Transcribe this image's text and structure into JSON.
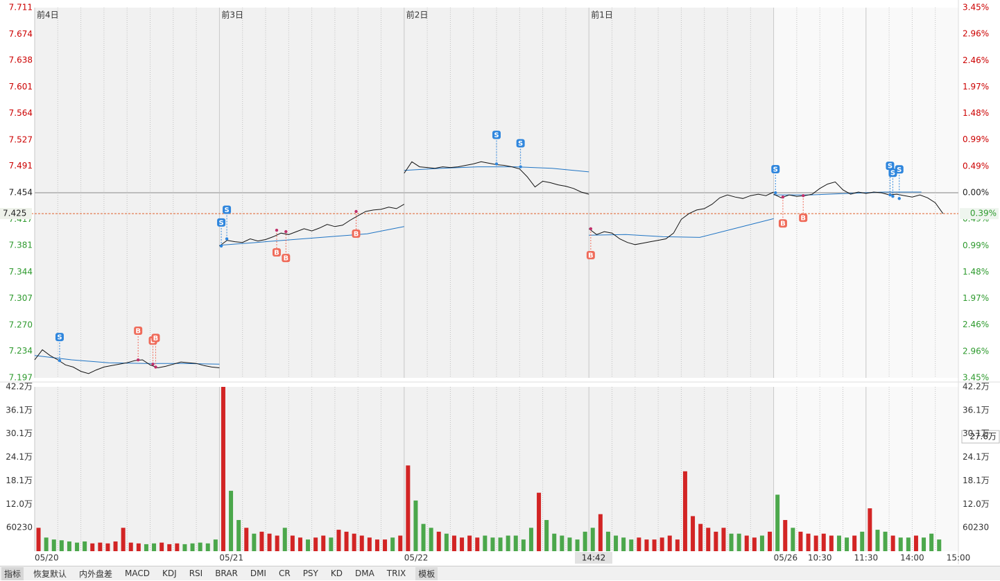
{
  "chart_data": [
    {
      "type": "line",
      "ylim": [
        7.197,
        7.711
      ],
      "yticks": [
        7.711,
        7.674,
        7.638,
        7.601,
        7.564,
        7.527,
        7.491,
        7.454,
        7.417,
        7.381,
        7.344,
        7.307,
        {
          "value": 7.27,
          "label": "7.270"
        },
        7.234,
        7.197
      ],
      "y2lim": [
        -3.45,
        3.45
      ],
      "y2ticks": [
        {
          "value": 3.45,
          "label": "3.45%"
        },
        {
          "value": 2.96,
          "label": "2.96%"
        },
        {
          "value": 2.46,
          "label": "2.46%"
        },
        {
          "value": 1.97,
          "label": "1.97%"
        },
        {
          "value": 1.48,
          "label": "1.48%"
        },
        {
          "value": 0.99,
          "label": "0.99%"
        },
        {
          "value": 0.49,
          "label": "0.49%"
        },
        {
          "value": 0,
          "label": "0.00%"
        },
        {
          "value": -0.49,
          "label": "0.49%"
        },
        {
          "value": -0.99,
          "label": "0.99%"
        },
        {
          "value": -1.48,
          "label": "1.48%"
        },
        {
          "value": -1.97,
          "label": "1.97%"
        },
        {
          "value": -2.46,
          "label": "2.46%"
        },
        {
          "value": -2.96,
          "label": "2.96%"
        },
        {
          "value": -3.45,
          "label": "3.45%"
        }
      ],
      "xlim": [
        0,
        5
      ],
      "xticks": [
        {
          "value": 0,
          "label": "05/20"
        },
        {
          "value": 1,
          "label": "05/21"
        },
        {
          "value": 2,
          "label": "05/22"
        },
        {
          "value": 4,
          "label": "05/26"
        },
        {
          "value": 4.25,
          "label": "10:30"
        },
        {
          "value": 4.5,
          "label": "11:30"
        },
        {
          "value": 4.75,
          "label": "14:00"
        },
        {
          "value": 5,
          "label": "15:00"
        }
      ],
      "day_labels": [
        "前4日",
        "前3日",
        "前2日",
        "前1日"
      ],
      "price_color": "#111111",
      "average_color": "#1f74c4",
      "up_color": "#cc0000",
      "down_color": "#2e9a2e",
      "days": [
        {
          "price": [
            7.222,
            7.236,
            7.228,
            7.222,
            7.215,
            7.212,
            7.206,
            7.203,
            7.208,
            7.212,
            7.214,
            7.216,
            7.218,
            7.221,
            7.222,
            7.215,
            7.211,
            7.213,
            7.216,
            7.219,
            7.218,
            7.217,
            7.214,
            7.212,
            7.211
          ],
          "average": [
            7.228,
            7.222,
            7.218,
            7.217,
            7.217,
            7.216
          ]
        },
        {
          "price": [
            7.38,
            7.388,
            7.386,
            7.385,
            7.39,
            7.387,
            7.389,
            7.393,
            7.398,
            7.396,
            7.4,
            7.404,
            7.401,
            7.405,
            7.41,
            7.407,
            7.409,
            7.416,
            7.422,
            7.428,
            7.43,
            7.431,
            7.434,
            7.432,
            7.438
          ],
          "average": [
            7.381,
            7.385,
            7.389,
            7.393,
            7.397,
            7.407
          ]
        },
        {
          "price": [
            7.481,
            7.497,
            7.49,
            7.489,
            7.488,
            7.49,
            7.489,
            7.49,
            7.492,
            7.494,
            7.497,
            7.495,
            7.493,
            7.492,
            7.49,
            7.487,
            7.476,
            7.462,
            7.47,
            7.468,
            7.465,
            7.463,
            7.46,
            7.455,
            7.452
          ],
          "average": [
            7.485,
            7.488,
            7.49,
            7.49,
            7.488,
            7.483
          ]
        },
        {
          "price": [
            7.404,
            7.396,
            7.4,
            7.398,
            7.39,
            7.385,
            7.382,
            7.384,
            7.386,
            7.388,
            7.39,
            7.398,
            7.417,
            7.425,
            7.43,
            7.432,
            7.438,
            7.447,
            7.451,
            7.448,
            7.446,
            7.45,
            7.452,
            7.45,
            7.455
          ],
          "average": [
            7.395,
            7.396,
            7.393,
            7.392,
            7.405,
            7.418
          ]
        },
        {
          "price": [
            7.452,
            7.447,
            7.451,
            7.449,
            7.45,
            7.452,
            7.46,
            7.466,
            7.469,
            7.458,
            7.452,
            7.455,
            7.453,
            7.455,
            7.454,
            7.451,
            7.452,
            7.45,
            7.448,
            7.451,
            7.447,
            7.44,
            7.425,
            null,
            null
          ],
          "average": [
            7.451,
            7.451,
            7.453,
            7.455,
            7.455,
            null
          ]
        }
      ],
      "trades": [
        {
          "type": "S",
          "x": 0.135,
          "price": 7.221
        },
        {
          "type": "B",
          "x": 0.56,
          "price": 7.222
        },
        {
          "type": "B",
          "x": 0.64,
          "price": 7.216
        },
        {
          "type": "B",
          "x": 0.655,
          "price": 7.212
        },
        {
          "type": "S",
          "x": 1.01,
          "price": 7.38
        },
        {
          "type": "S",
          "x": 1.04,
          "price": 7.39
        },
        {
          "type": "B",
          "x": 1.31,
          "price": 7.402
        },
        {
          "type": "B",
          "x": 1.36,
          "price": 7.4
        },
        {
          "type": "B",
          "x": 1.74,
          "price": 7.428
        },
        {
          "type": "S",
          "x": 2.5,
          "price": 7.494
        },
        {
          "type": "S",
          "x": 2.63,
          "price": 7.49
        },
        {
          "type": "B",
          "x": 3.01,
          "price": 7.404
        },
        {
          "type": "S",
          "x": 4.01,
          "price": 7.454
        },
        {
          "type": "B",
          "x": 4.05,
          "price": 7.448
        },
        {
          "type": "B",
          "x": 4.16,
          "price": 7.45
        },
        {
          "type": "S",
          "x": 4.63,
          "price": 7.451
        },
        {
          "type": "S",
          "x": 4.645,
          "price": 7.449
        },
        {
          "type": "S",
          "x": 4.68,
          "price": 7.446
        }
      ],
      "current_price": {
        "value": 7.425,
        "label": "7.425"
      },
      "current_change": {
        "value": -0.39,
        "label": "0.39%"
      },
      "cursor_time": "14:42"
    },
    {
      "type": "bar",
      "ylim": [
        0,
        421610
      ],
      "yticks": [
        {
          "value": 421610,
          "label": "42.2万"
        },
        {
          "value": 361380,
          "label": "36.1万"
        },
        {
          "value": 301150,
          "label": "30.1万"
        },
        {
          "value": 240920,
          "label": "24.1万"
        },
        {
          "value": 180690,
          "label": "18.1万"
        },
        {
          "value": 120460,
          "label": "12.0万"
        },
        60230
      ],
      "days": [
        [
          60000,
          35000,
          30000,
          28000,
          25000,
          22000,
          25000,
          20000,
          22000,
          20000,
          25000,
          60000,
          22000,
          20000,
          18000,
          20000,
          22000,
          18000,
          20000,
          18000,
          20000,
          22000,
          20000,
          30000
        ],
        [
          421610,
          155000,
          80000,
          60000,
          45000,
          50000,
          45000,
          40000,
          60000,
          40000,
          35000,
          30000,
          35000,
          40000,
          35000,
          55000,
          50000,
          45000,
          40000,
          35000,
          30000,
          30000,
          35000,
          40000
        ],
        [
          220000,
          130000,
          70000,
          60000,
          50000,
          45000,
          40000,
          35000,
          40000,
          35000,
          40000,
          35000,
          35000,
          40000,
          40000,
          30000,
          60000,
          150000,
          80000,
          45000,
          40000,
          35000,
          30000,
          50000
        ],
        [
          60000,
          95000,
          50000,
          40000,
          35000,
          30000,
          35000,
          30000,
          30000,
          35000,
          40000,
          30000,
          205000,
          90000,
          70000,
          60000,
          50000,
          60000,
          45000,
          45000,
          40000,
          35000,
          40000,
          50000
        ],
        [
          145000,
          80000,
          60000,
          50000,
          45000,
          40000,
          45000,
          40000,
          40000,
          35000,
          40000,
          50000,
          110000,
          55000,
          50000,
          40000,
          35000,
          35000,
          40000,
          35000,
          45000,
          30000,
          null,
          null
        ]
      ],
      "cursor_label": "27.6万"
    }
  ],
  "tabs": [
    "指标",
    "恢复默认",
    "内外盘差",
    "MACD",
    "KDJ",
    "RSI",
    "BRAR",
    "DMI",
    "CR",
    "PSY",
    "KD",
    "DMA",
    "TRIX",
    "模板"
  ]
}
